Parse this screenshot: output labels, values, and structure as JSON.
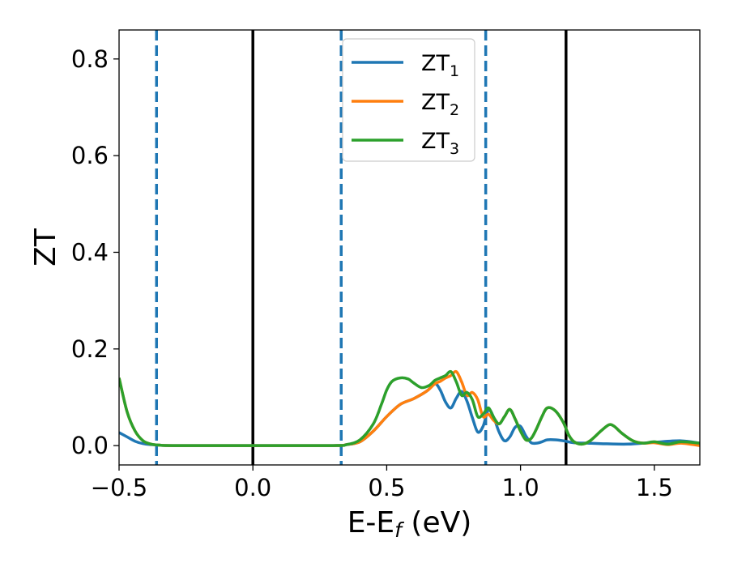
{
  "chart_data": {
    "type": "line",
    "title": "",
    "xlabel": {
      "main": "E-E",
      "sub": "f",
      "suffix": " (eV)"
    },
    "ylabel": "ZT",
    "xlim": [
      -0.5,
      1.67
    ],
    "ylim": [
      -0.04,
      0.86
    ],
    "xticks": [
      -0.5,
      0.0,
      0.5,
      1.0,
      1.5
    ],
    "xtick_labels": [
      "−0.5",
      "0.0",
      "0.5",
      "1.0",
      "1.5"
    ],
    "yticks": [
      0.0,
      0.2,
      0.4,
      0.6,
      0.8
    ],
    "ytick_labels": [
      "0.0",
      "0.2",
      "0.4",
      "0.6",
      "0.8"
    ],
    "grid": false,
    "legend_position": "top-center",
    "vertical_lines": [
      {
        "x": -0.36,
        "style": "dashed",
        "color": "#1f77b4"
      },
      {
        "x": 0.0,
        "style": "solid",
        "color": "#000000"
      },
      {
        "x": 0.33,
        "style": "dashed",
        "color": "#1f77b4"
      },
      {
        "x": 0.87,
        "style": "dashed",
        "color": "#1f77b4"
      },
      {
        "x": 1.17,
        "style": "solid",
        "color": "#000000"
      }
    ],
    "series": [
      {
        "name": "ZT",
        "sub": "1",
        "color": "#1f77b4",
        "x": [
          -0.5,
          -0.47,
          -0.44,
          -0.41,
          -0.38,
          -0.35,
          -0.3,
          0.0,
          0.3,
          0.35,
          0.4,
          0.45,
          0.5,
          0.55,
          0.6,
          0.65,
          0.68,
          0.7,
          0.72,
          0.74,
          0.76,
          0.78,
          0.8,
          0.82,
          0.84,
          0.86,
          0.88,
          0.9,
          0.92,
          0.94,
          0.96,
          0.98,
          1.0,
          1.02,
          1.04,
          1.06,
          1.08,
          1.1,
          1.13,
          1.16,
          1.2,
          1.25,
          1.3,
          1.4,
          1.5,
          1.6,
          1.67
        ],
        "y": [
          0.027,
          0.018,
          0.009,
          0.004,
          0.002,
          0.001,
          0.0,
          0.0,
          0.0,
          0.002,
          0.008,
          0.03,
          0.06,
          0.085,
          0.097,
          0.113,
          0.128,
          0.115,
          0.09,
          0.078,
          0.098,
          0.112,
          0.092,
          0.058,
          0.028,
          0.04,
          0.074,
          0.058,
          0.028,
          0.01,
          0.018,
          0.038,
          0.04,
          0.02,
          0.006,
          0.005,
          0.008,
          0.012,
          0.012,
          0.01,
          0.006,
          0.005,
          0.004,
          0.003,
          0.007,
          0.01,
          0.005
        ]
      },
      {
        "name": "ZT",
        "sub": "2",
        "color": "#ff7f0e",
        "x": [
          -0.5,
          -0.47,
          -0.44,
          -0.41,
          -0.38,
          -0.35,
          -0.3,
          0.0,
          0.3,
          0.35,
          0.4,
          0.45,
          0.5,
          0.55,
          0.6,
          0.65,
          0.68,
          0.7,
          0.72,
          0.74,
          0.76,
          0.78,
          0.8,
          0.82,
          0.84,
          0.86,
          0.88,
          0.9,
          0.92,
          0.94,
          0.96,
          0.98,
          1.0,
          1.02,
          1.04,
          1.06,
          1.08,
          1.1,
          1.13,
          1.16,
          1.18,
          1.2,
          1.23,
          1.26,
          1.3,
          1.33,
          1.35,
          1.38,
          1.42,
          1.46,
          1.5,
          1.55,
          1.6,
          1.67
        ],
        "y": [
          0.14,
          0.07,
          0.03,
          0.01,
          0.003,
          0.001,
          0.0,
          0.0,
          0.0,
          0.002,
          0.008,
          0.03,
          0.06,
          0.085,
          0.097,
          0.113,
          0.128,
          0.133,
          0.14,
          0.145,
          0.153,
          0.132,
          0.104,
          0.11,
          0.095,
          0.06,
          0.065,
          0.052,
          0.045,
          0.06,
          0.075,
          0.055,
          0.03,
          0.012,
          0.015,
          0.035,
          0.06,
          0.078,
          0.072,
          0.048,
          0.022,
          0.008,
          0.003,
          0.01,
          0.03,
          0.043,
          0.04,
          0.025,
          0.01,
          0.005,
          0.006,
          0.002,
          0.005,
          0.0
        ]
      },
      {
        "name": "ZT",
        "sub": "3",
        "color": "#2ca02c",
        "x": [
          -0.5,
          -0.47,
          -0.44,
          -0.41,
          -0.38,
          -0.35,
          -0.3,
          0.0,
          0.3,
          0.35,
          0.4,
          0.45,
          0.48,
          0.5,
          0.52,
          0.55,
          0.58,
          0.6,
          0.63,
          0.66,
          0.68,
          0.7,
          0.72,
          0.74,
          0.76,
          0.78,
          0.8,
          0.82,
          0.84,
          0.86,
          0.88,
          0.9,
          0.92,
          0.94,
          0.96,
          0.98,
          1.0,
          1.02,
          1.04,
          1.06,
          1.08,
          1.1,
          1.13,
          1.16,
          1.18,
          1.2,
          1.23,
          1.26,
          1.3,
          1.33,
          1.35,
          1.38,
          1.42,
          1.46,
          1.5,
          1.55,
          1.6,
          1.67
        ],
        "y": [
          0.14,
          0.07,
          0.03,
          0.01,
          0.003,
          0.001,
          0.0,
          0.0,
          0.0,
          0.002,
          0.012,
          0.045,
          0.085,
          0.115,
          0.133,
          0.14,
          0.138,
          0.13,
          0.12,
          0.125,
          0.135,
          0.14,
          0.145,
          0.153,
          0.132,
          0.104,
          0.11,
          0.095,
          0.06,
          0.065,
          0.078,
          0.058,
          0.045,
          0.06,
          0.075,
          0.055,
          0.03,
          0.012,
          0.015,
          0.035,
          0.06,
          0.078,
          0.072,
          0.048,
          0.022,
          0.008,
          0.003,
          0.01,
          0.03,
          0.043,
          0.04,
          0.025,
          0.01,
          0.005,
          0.008,
          0.003,
          0.008,
          0.005
        ]
      }
    ]
  }
}
